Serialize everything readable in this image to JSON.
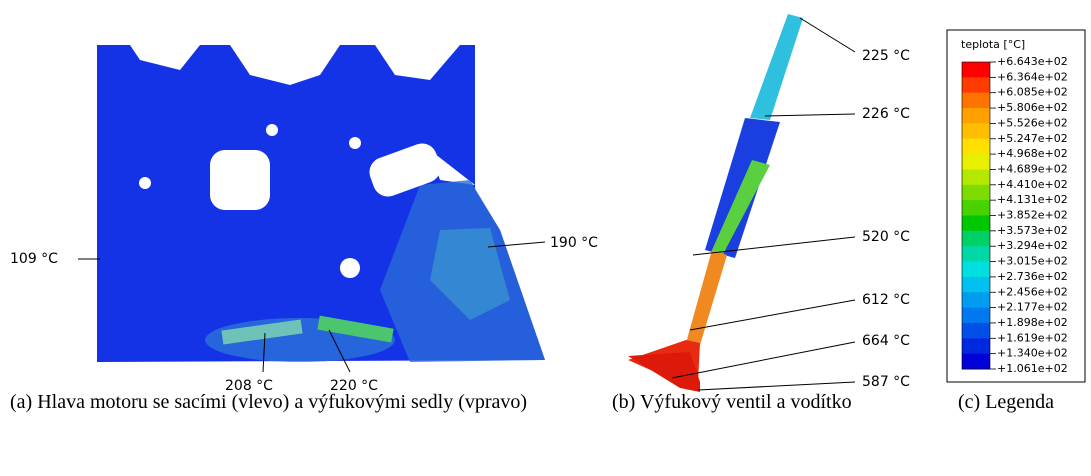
{
  "panels": [
    {
      "annotations": [
        "109 °C",
        "190 °C",
        "208 °C",
        "220 °C"
      ],
      "caption": "(a) Hlava motoru se sacími (vlevo) a výfukovými sedly (vpravo)"
    },
    {
      "annotations": [
        "225 °C",
        "226 °C",
        "520 °C",
        "612 °C",
        "664 °C",
        "587 °C"
      ],
      "caption": "(b) Výfukový ventil a vodítko"
    },
    {
      "caption": "(c) Legenda"
    }
  ],
  "legend": {
    "title": "teplota [°C]",
    "labels": [
      "+6.643e+02",
      "+6.364e+02",
      "+6.085e+02",
      "+5.806e+02",
      "+5.526e+02",
      "+5.247e+02",
      "+4.968e+02",
      "+4.689e+02",
      "+4.410e+02",
      "+4.131e+02",
      "+3.852e+02",
      "+3.573e+02",
      "+3.294e+02",
      "+3.015e+02",
      "+2.736e+02",
      "+2.456e+02",
      "+2.177e+02",
      "+1.898e+02",
      "+1.619e+02",
      "+1.340e+02",
      "+1.061e+02"
    ]
  }
}
